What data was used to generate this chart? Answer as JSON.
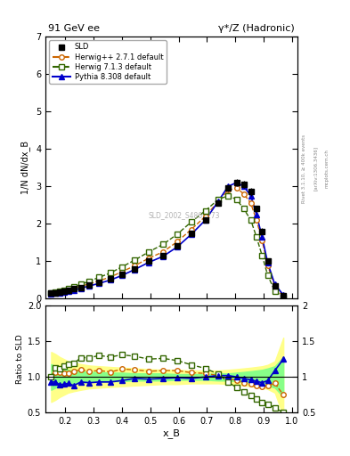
{
  "title_left": "91 GeV ee",
  "title_right": "γ*/Z (Hadronic)",
  "ylabel_main": "1/N dN/dx_B",
  "ylabel_ratio": "Ratio to SLD",
  "xlabel": "x_B",
  "rivet_label": "Rivet 3.1.10, ≥ 400k events",
  "arxiv_label": "[arXiv:1306.3436]",
  "mcplots_label": "mcplots.cern.ch",
  "watermark": "SLD_2002_S4869273",
  "ylim_main": [
    0,
    7
  ],
  "ylim_ratio": [
    0.5,
    2.0
  ],
  "xlim": [
    0.13,
    1.02
  ],
  "sld_x": [
    0.15,
    0.165,
    0.18,
    0.195,
    0.21,
    0.23,
    0.255,
    0.285,
    0.32,
    0.36,
    0.4,
    0.445,
    0.495,
    0.545,
    0.595,
    0.645,
    0.695,
    0.74,
    0.775,
    0.805,
    0.83,
    0.855,
    0.875,
    0.895,
    0.915,
    0.94,
    0.97
  ],
  "sld_y": [
    0.14,
    0.15,
    0.18,
    0.2,
    0.22,
    0.26,
    0.3,
    0.37,
    0.44,
    0.54,
    0.65,
    0.8,
    1.0,
    1.15,
    1.4,
    1.75,
    2.1,
    2.55,
    2.95,
    3.1,
    3.05,
    2.85,
    2.4,
    1.8,
    1.0,
    0.35,
    0.08
  ],
  "sld_yerr": [
    0.01,
    0.01,
    0.01,
    0.01,
    0.01,
    0.01,
    0.01,
    0.02,
    0.02,
    0.02,
    0.03,
    0.03,
    0.04,
    0.04,
    0.05,
    0.06,
    0.07,
    0.08,
    0.09,
    0.1,
    0.1,
    0.1,
    0.09,
    0.08,
    0.06,
    0.04,
    0.02
  ],
  "herwig_x": [
    0.15,
    0.165,
    0.18,
    0.195,
    0.21,
    0.23,
    0.255,
    0.285,
    0.32,
    0.36,
    0.4,
    0.445,
    0.495,
    0.545,
    0.595,
    0.645,
    0.695,
    0.74,
    0.775,
    0.805,
    0.83,
    0.855,
    0.875,
    0.895,
    0.915,
    0.94,
    0.97
  ],
  "herwig_y": [
    0.14,
    0.16,
    0.19,
    0.21,
    0.23,
    0.28,
    0.33,
    0.4,
    0.48,
    0.58,
    0.72,
    0.88,
    1.08,
    1.25,
    1.52,
    1.85,
    2.2,
    2.6,
    2.9,
    2.95,
    2.8,
    2.55,
    2.1,
    1.55,
    0.88,
    0.32,
    0.06
  ],
  "herwig713_x": [
    0.15,
    0.165,
    0.18,
    0.195,
    0.21,
    0.23,
    0.255,
    0.285,
    0.32,
    0.36,
    0.4,
    0.445,
    0.495,
    0.545,
    0.595,
    0.645,
    0.695,
    0.74,
    0.775,
    0.805,
    0.83,
    0.855,
    0.875,
    0.895,
    0.915,
    0.94,
    0.97
  ],
  "herwig713_y": [
    0.14,
    0.17,
    0.2,
    0.23,
    0.26,
    0.31,
    0.38,
    0.47,
    0.57,
    0.69,
    0.85,
    1.03,
    1.25,
    1.45,
    1.72,
    2.05,
    2.35,
    2.65,
    2.75,
    2.65,
    2.4,
    2.1,
    1.65,
    1.15,
    0.62,
    0.2,
    0.04
  ],
  "pythia_x": [
    0.15,
    0.165,
    0.18,
    0.195,
    0.21,
    0.23,
    0.255,
    0.285,
    0.32,
    0.36,
    0.4,
    0.445,
    0.495,
    0.545,
    0.595,
    0.645,
    0.695,
    0.74,
    0.775,
    0.805,
    0.83,
    0.855,
    0.875,
    0.895,
    0.915,
    0.94,
    0.97
  ],
  "pythia_y": [
    0.13,
    0.14,
    0.16,
    0.18,
    0.2,
    0.23,
    0.28,
    0.34,
    0.41,
    0.5,
    0.62,
    0.78,
    0.97,
    1.13,
    1.38,
    1.72,
    2.1,
    2.6,
    3.0,
    3.1,
    3.0,
    2.75,
    2.25,
    1.65,
    0.95,
    0.38,
    0.1
  ],
  "ratio_herwig_y": [
    1.0,
    1.07,
    1.06,
    1.05,
    1.05,
    1.08,
    1.1,
    1.08,
    1.09,
    1.07,
    1.11,
    1.1,
    1.08,
    1.09,
    1.09,
    1.06,
    1.05,
    1.02,
    0.98,
    0.95,
    0.92,
    0.9,
    0.88,
    0.86,
    0.88,
    0.91,
    0.75
  ],
  "ratio_herwig713_y": [
    1.0,
    1.13,
    1.11,
    1.15,
    1.18,
    1.19,
    1.27,
    1.27,
    1.3,
    1.28,
    1.31,
    1.29,
    1.25,
    1.26,
    1.23,
    1.17,
    1.12,
    1.04,
    0.93,
    0.85,
    0.79,
    0.74,
    0.69,
    0.64,
    0.62,
    0.57,
    0.5
  ],
  "ratio_pythia_y": [
    0.93,
    0.93,
    0.89,
    0.9,
    0.91,
    0.88,
    0.93,
    0.92,
    0.93,
    0.93,
    0.95,
    0.98,
    0.97,
    0.98,
    0.99,
    0.98,
    1.0,
    1.02,
    1.02,
    1.0,
    0.98,
    0.96,
    0.94,
    0.92,
    0.95,
    1.09,
    1.25
  ],
  "yellow_band_lo": [
    0.65,
    0.68,
    0.72,
    0.75,
    0.78,
    0.8,
    0.82,
    0.84,
    0.85,
    0.86,
    0.87,
    0.88,
    0.89,
    0.9,
    0.9,
    0.91,
    0.91,
    0.91,
    0.9,
    0.89,
    0.88,
    0.87,
    0.86,
    0.85,
    0.83,
    0.78,
    0.45
  ],
  "yellow_band_hi": [
    1.35,
    1.32,
    1.28,
    1.25,
    1.22,
    1.2,
    1.18,
    1.16,
    1.15,
    1.14,
    1.13,
    1.12,
    1.11,
    1.1,
    1.1,
    1.09,
    1.09,
    1.09,
    1.1,
    1.11,
    1.12,
    1.13,
    1.14,
    1.15,
    1.17,
    1.22,
    1.55
  ],
  "green_band_lo": [
    0.82,
    0.85,
    0.87,
    0.88,
    0.9,
    0.91,
    0.92,
    0.93,
    0.93,
    0.94,
    0.94,
    0.95,
    0.95,
    0.95,
    0.96,
    0.96,
    0.96,
    0.95,
    0.95,
    0.94,
    0.93,
    0.92,
    0.91,
    0.9,
    0.88,
    0.85,
    0.72
  ],
  "green_band_hi": [
    1.18,
    1.15,
    1.13,
    1.12,
    1.1,
    1.09,
    1.08,
    1.07,
    1.07,
    1.06,
    1.06,
    1.05,
    1.05,
    1.05,
    1.04,
    1.04,
    1.04,
    1.05,
    1.05,
    1.06,
    1.07,
    1.08,
    1.09,
    1.1,
    1.12,
    1.15,
    1.28
  ],
  "color_sld": "#000000",
  "color_herwig": "#cc6600",
  "color_herwig713": "#336600",
  "color_pythia": "#0000cc",
  "color_yellow": "#ffff88",
  "color_green": "#88ff88"
}
